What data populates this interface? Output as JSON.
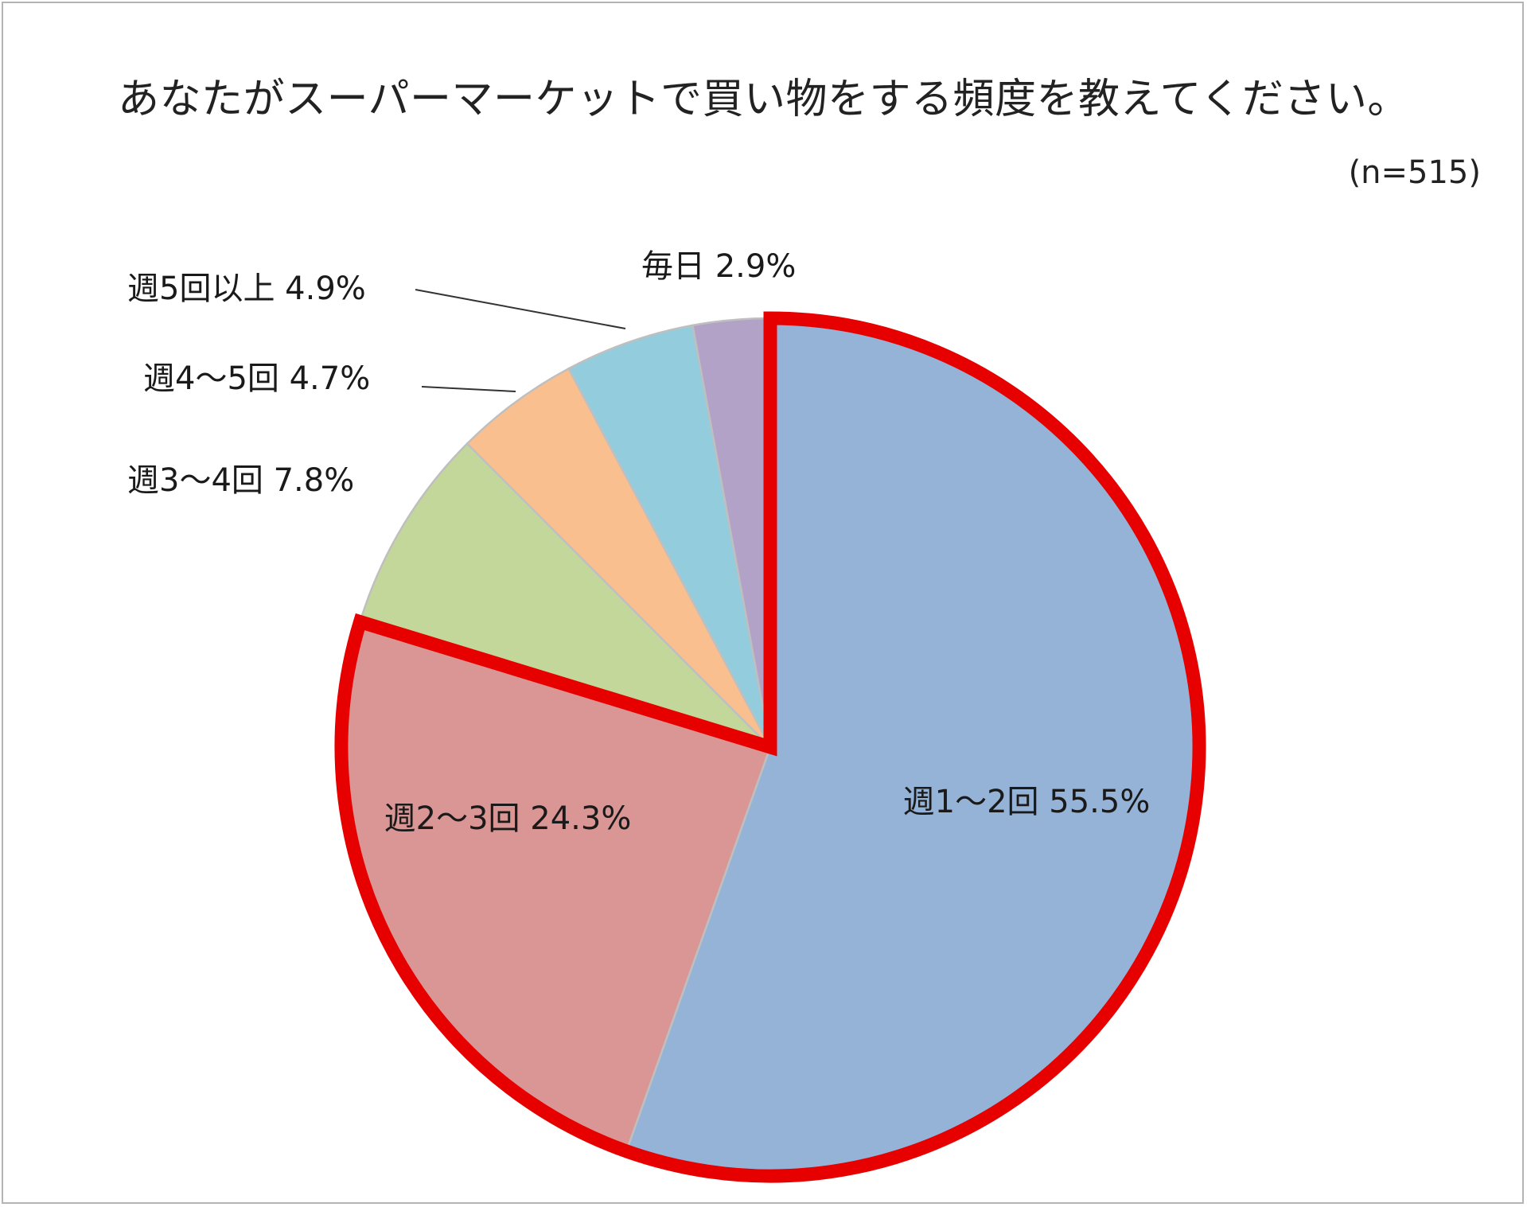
{
  "chart_data": {
    "type": "pie",
    "title": "あなたがスーパーマーケットで買い物をする頻度を教えてください。",
    "subtitle": "(n=515)",
    "unit": "%",
    "start_angle_deg": 0,
    "direction": "clockwise",
    "slices": [
      {
        "label": "週1～2回",
        "value": 55.5,
        "display": "週1～2回 55.5%",
        "color": "#95b3d7"
      },
      {
        "label": "週2～3回",
        "value": 24.3,
        "display": "週2～3回 24.3%",
        "color": "#d99694"
      },
      {
        "label": "週3～4回",
        "value": 7.8,
        "display": "週3～4回 7.8%",
        "color": "#c4d79b"
      },
      {
        "label": "週4～5回",
        "value": 4.7,
        "display": "週4～5回 4.7%",
        "color": "#fabf8f"
      },
      {
        "label": "週5回以上",
        "value": 4.9,
        "display": "週5回以上 4.9%",
        "color": "#93cddd"
      },
      {
        "label": "毎日",
        "value": 2.9,
        "display": "毎日 2.9%",
        "color": "#b2a2c7"
      }
    ],
    "highlight": {
      "slices": [
        "週1～2回",
        "週2～3回"
      ],
      "color": "#e60000"
    },
    "legend": "none"
  }
}
